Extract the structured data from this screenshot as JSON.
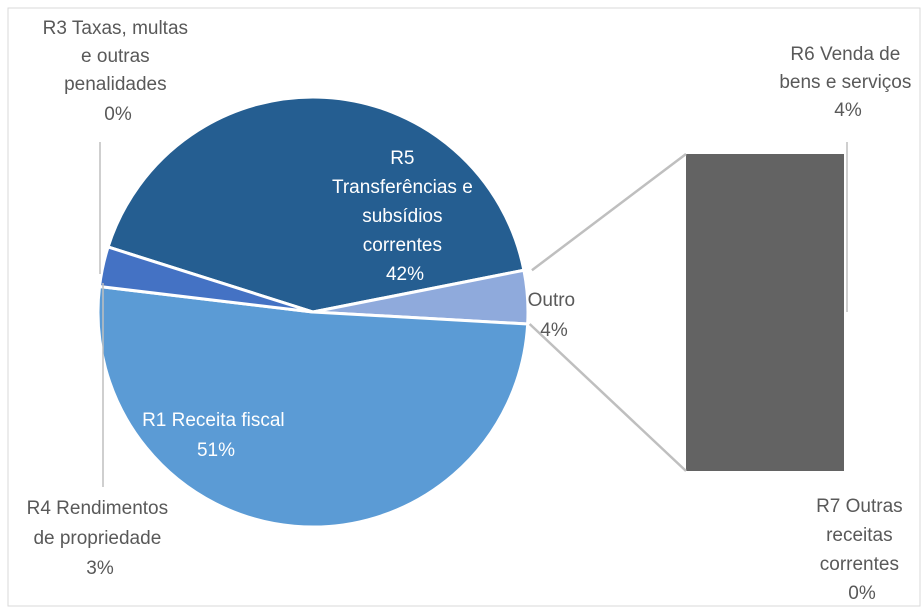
{
  "chart_data": {
    "type": "pie",
    "subtype": "bar-of-pie",
    "slices": [
      {
        "category": "R1 Receita fiscal",
        "value": 51,
        "value_label": "51%",
        "color": "#5b9bd5"
      },
      {
        "category": "R3 Taxas, multas e outras penalidades",
        "value": 0,
        "value_label": "0%",
        "color": "#4a6fbf"
      },
      {
        "category": "R4 Rendimentos de propriedade",
        "value": 3,
        "value_label": "3%",
        "color": "#4472c4"
      },
      {
        "category": "R5 Transferências e subsídios correntes",
        "value": 42,
        "value_label": "42%",
        "color": "#255e91"
      },
      {
        "category": "Outro",
        "value": 4,
        "value_label": "4%",
        "color": "#8faadc"
      }
    ],
    "secondary_bar": [
      {
        "category": "R6 Venda de bens e serviços",
        "value": 4,
        "value_label": "4%",
        "color": "#636363"
      },
      {
        "category": "R7 Outras receitas correntes",
        "value": 0,
        "value_label": "0%",
        "color": "#636363"
      }
    ],
    "labels": {
      "r1": {
        "lines": [
          "R1 Receita fiscal",
          "51%"
        ]
      },
      "r3": {
        "lines": [
          "R3 Taxas, multas",
          "e outras",
          "penalidades",
          "0%"
        ]
      },
      "r4": {
        "lines": [
          "R4 Rendimentos",
          "de propriedade",
          "3%"
        ]
      },
      "r5": {
        "lines": [
          "R5",
          "Transferências e",
          "subsídios",
          "correntes",
          "42%"
        ]
      },
      "outro": {
        "lines": [
          "Outro",
          "4%"
        ]
      },
      "r6": {
        "lines": [
          "R6 Venda de",
          "bens e serviços",
          "4%"
        ]
      },
      "r7": {
        "lines": [
          "R7 Outras",
          "receitas",
          "correntes",
          "0%"
        ]
      }
    },
    "connector_color": "#bfbfbf",
    "border_color": "#d9d9d9"
  }
}
